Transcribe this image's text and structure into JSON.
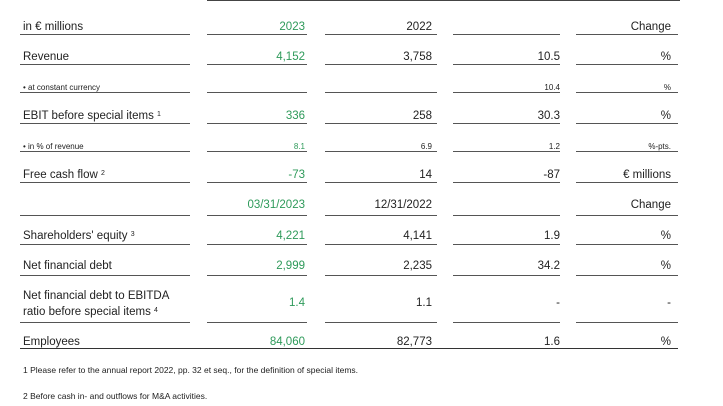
{
  "header": {
    "label": "in € millions",
    "col2023": "2023",
    "col2022": "2022",
    "change": "Change"
  },
  "rows": [
    {
      "label": "Revenue",
      "sup": "",
      "v2023": "4,152",
      "v2022": "3,758",
      "change": "10.5",
      "unit": "%"
    },
    {
      "label": "• at constant  currency",
      "sup": "",
      "v2023": "",
      "v2022": "",
      "change": "10.4",
      "unit": "%"
    },
    {
      "label": "EBIT before special items",
      "sup": "1",
      "v2023": "336",
      "v2022": "258",
      "change": "30.3",
      "unit": "%"
    },
    {
      "label": "• in % of revenue",
      "sup": "",
      "v2023": "8.1",
      "v2022": "6.9",
      "change": "1.2",
      "unit": "%-pts."
    },
    {
      "label": "Free cash flow",
      "sup": "2",
      "v2023": "-73",
      "v2022": "14",
      "change": "-87",
      "unit": "€ millions"
    }
  ],
  "header2": {
    "col2023": "03/31/2023",
    "col2022": "12/31/2022",
    "change": "Change"
  },
  "rows2": [
    {
      "label": "Shareholders' equity",
      "sup": "3",
      "v2023": "4,221",
      "v2022": "4,141",
      "change": "1.9",
      "unit": "%"
    },
    {
      "label": "Net financial debt",
      "sup": "",
      "v2023": "2,999",
      "v2022": "2,235",
      "change": "34.2",
      "unit": "%"
    },
    {
      "label_line1": "Net financial debt to EBITDA",
      "label_line2": "ratio before special items",
      "sup": "4",
      "v2023": "1.4",
      "v2022": "1.1",
      "change": "-",
      "unit": "-"
    },
    {
      "label": "Employees",
      "sup": "",
      "v2023": "84,060",
      "v2022": "82,773",
      "change": "1.6",
      "unit": "%"
    }
  ],
  "footnotes": [
    "1 Please refer to the annual report 2022, pp. 32 et seq., for the definition  of special  items.",
    "2 Before cash in- and outflows  for M&A activities."
  ]
}
